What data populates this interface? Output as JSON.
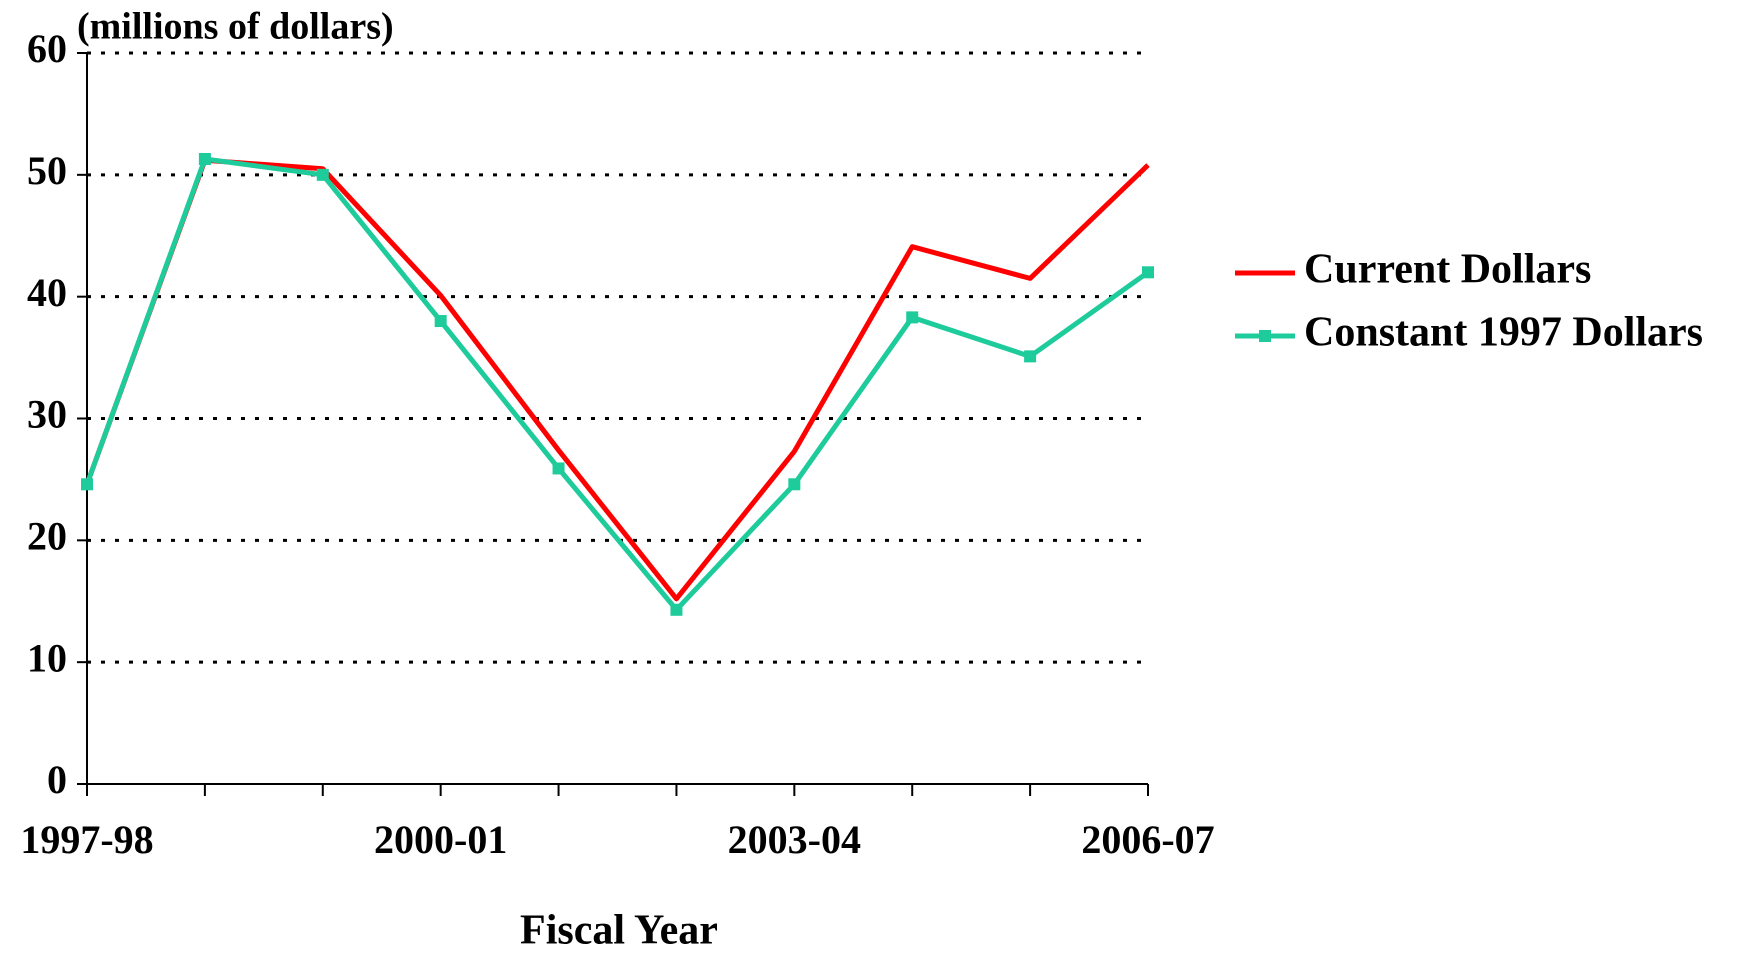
{
  "chart_data": {
    "type": "line",
    "y_axis_label": "(millions of dollars)",
    "x_axis_label": "Fiscal Year",
    "categories": [
      "1997-98",
      null,
      null,
      "2000-01",
      null,
      null,
      "2003-04",
      null,
      null,
      "2006-07"
    ],
    "series": [
      {
        "name": "Current Dollars",
        "color": "#ff0000",
        "marker": false,
        "values": [
          24.6,
          51.2,
          50.5,
          40.1,
          27.4,
          15.2,
          27.3,
          44.1,
          41.5,
          50.8
        ]
      },
      {
        "name": "Constant 1997 Dollars",
        "color": "#1ecb9b",
        "marker": true,
        "values": [
          24.6,
          51.3,
          50.0,
          38.0,
          25.9,
          14.3,
          24.6,
          38.3,
          35.1,
          42.0
        ]
      }
    ],
    "ylim": [
      0,
      60
    ],
    "yticks": [
      0,
      10,
      20,
      30,
      40,
      50,
      60
    ],
    "grid": true,
    "legend": "right"
  }
}
